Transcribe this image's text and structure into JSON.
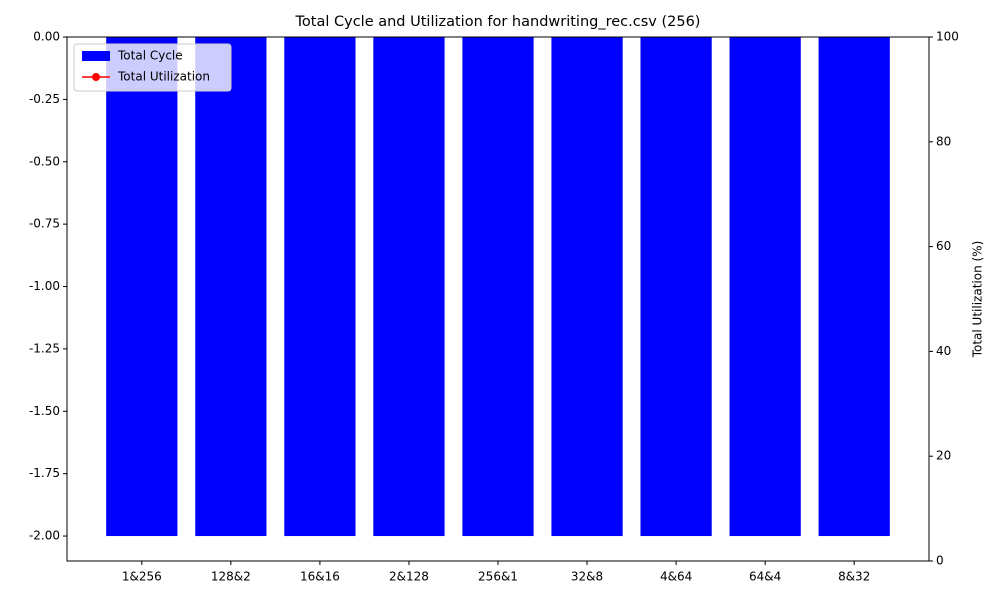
{
  "chart_data": {
    "type": "bar",
    "title": "Total Cycle and Utilization for handwriting_rec.csv (256)",
    "categories": [
      "1&256",
      "128&2",
      "16&16",
      "2&128",
      "256&1",
      "32&8",
      "4&64",
      "64&4",
      "8&32"
    ],
    "series": [
      {
        "name": "Total Cycle",
        "color": "#0000ff",
        "values": [
          -2,
          -2,
          -2,
          -2,
          -2,
          -2,
          -2,
          -2,
          -2
        ]
      },
      {
        "name": "Total Utilization",
        "color": "#ff0000",
        "type": "line",
        "axis": "y2",
        "values": [
          null,
          null,
          null,
          null,
          null,
          null,
          null,
          null,
          null
        ]
      }
    ],
    "ylim": [
      -2.1,
      0
    ],
    "yticks": [
      {
        "value": 0,
        "label": "0.00"
      },
      -0.25,
      {
        "value": -0.5,
        "label": "-0.50"
      },
      -0.75,
      {
        "value": -1,
        "label": "-1.00"
      },
      -1.25,
      {
        "value": -1.5,
        "label": "-1.50"
      },
      -1.75,
      {
        "value": -2,
        "label": "-2.00"
      }
    ],
    "y2label": "Total Utilization (%)",
    "y2lim": [
      0,
      100
    ],
    "y2ticks": [
      0,
      20,
      40,
      60,
      80,
      100
    ],
    "legend": "upper left"
  }
}
